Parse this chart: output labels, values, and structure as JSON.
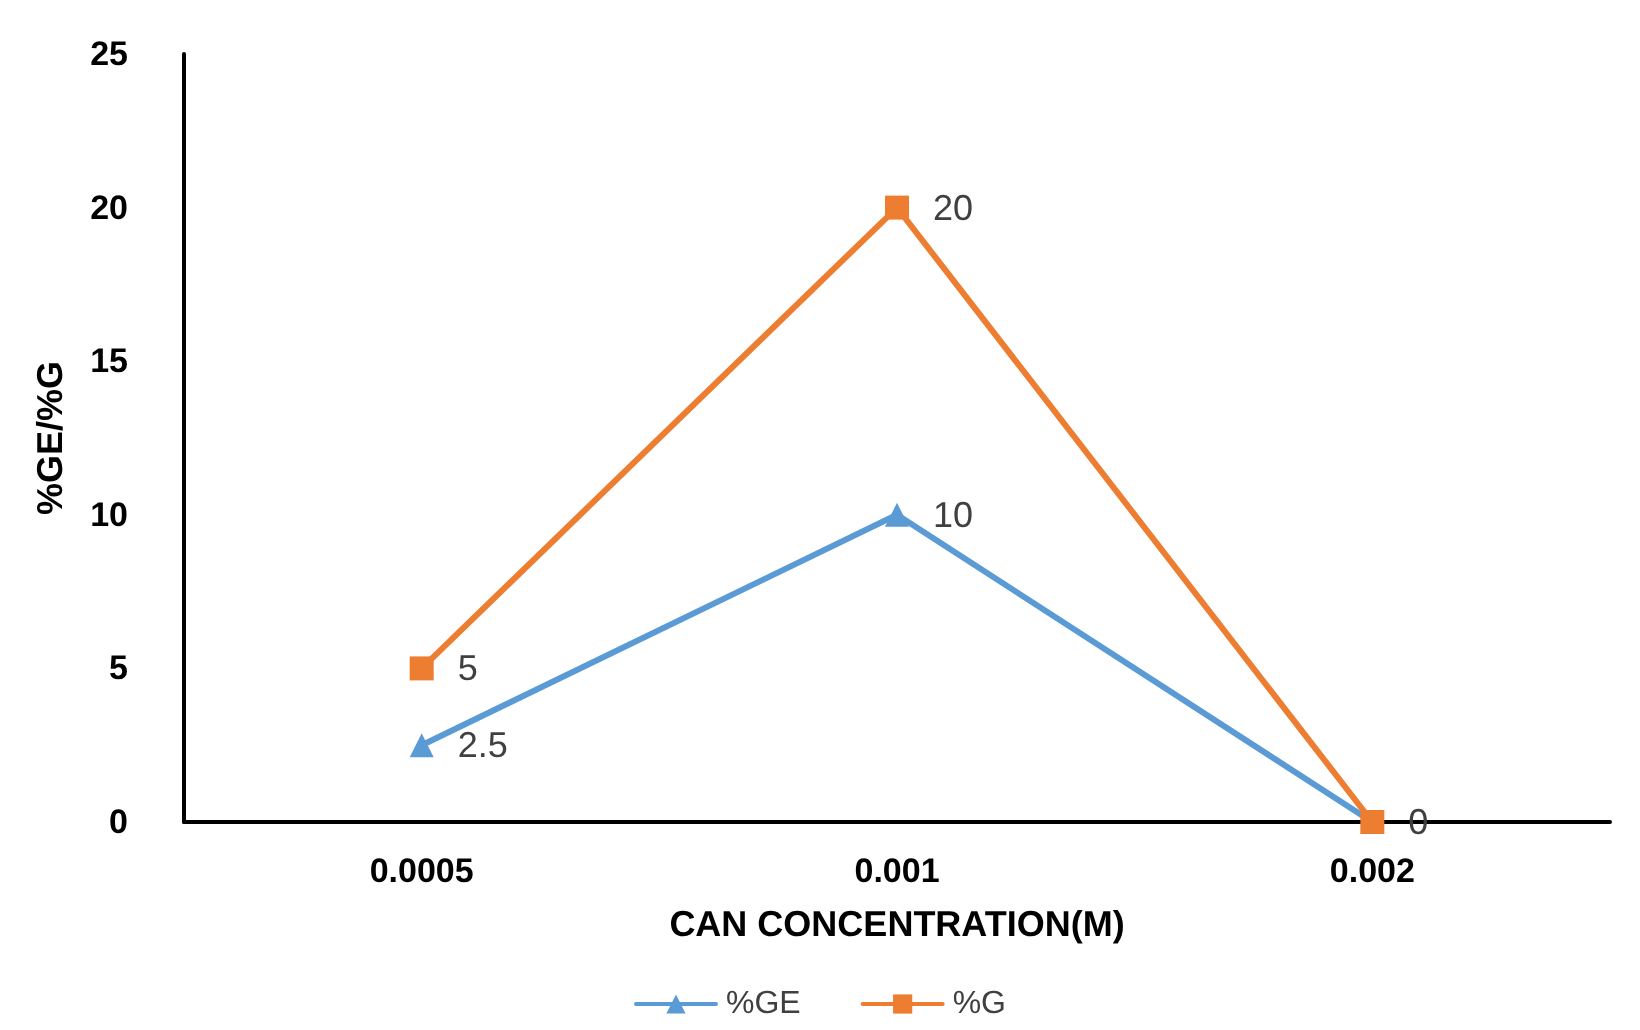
{
  "chart_data": {
    "type": "line",
    "xlabel": "CAN CONCENTRATION(M)",
    "ylabel": "%GE/%G",
    "categories": [
      "0.0005",
      "0.001",
      "0.002"
    ],
    "series": [
      {
        "name": "%GE",
        "color": "#5b9bd5",
        "marker": "triangle",
        "values": [
          2.5,
          10,
          0
        ],
        "value_labels": [
          "2.5",
          "10",
          null
        ]
      },
      {
        "name": "%G",
        "color": "#ed7d31",
        "marker": "square",
        "values": [
          5,
          20,
          0
        ],
        "value_labels": [
          "5",
          "20",
          "0"
        ]
      }
    ],
    "ylim": [
      0,
      25
    ],
    "yticks": [
      0,
      5,
      10,
      15,
      20,
      25
    ],
    "grid": false,
    "legend": "bottom",
    "line_style": "solid"
  }
}
